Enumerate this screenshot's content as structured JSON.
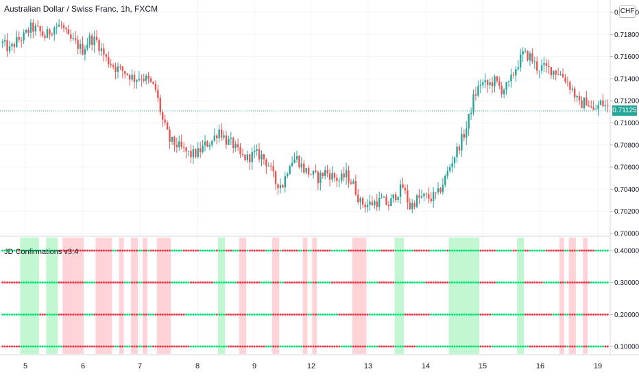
{
  "header": {
    "title": "Australian Dollar / Swiss Franc, 1h, FXCM",
    "currency_button": "CHF"
  },
  "indicator": {
    "title": "JD Confirmations v3.4"
  },
  "colors": {
    "up": "#26a69a",
    "down": "#ef5350",
    "dot_green": "#00e676",
    "dot_red": "#f23645",
    "band_green": "#b9f6ca",
    "band_red": "#ffcdd2",
    "last_price": "#26a69a"
  },
  "chart_data": [
    {
      "type": "candlestick",
      "title": "Australian Dollar / Swiss Franc, 1h, FXCM",
      "x_tick_labels": [
        "5",
        "6",
        "7",
        "8",
        "9",
        "12",
        "13",
        "14",
        "15",
        "16",
        "19"
      ],
      "y_tick_labels": [
        "0.72000",
        "0.71800",
        "0.71600",
        "0.71400",
        "0.71200",
        "0.71000",
        "0.70800",
        "0.70600",
        "0.70400",
        "0.70200",
        "0.70000"
      ],
      "ylim": [
        0.7,
        0.72
      ],
      "last_price": "0.71125",
      "price_path": [
        [
          0,
          0.7172
        ],
        [
          3,
          0.7166
        ],
        [
          6,
          0.7174
        ],
        [
          9,
          0.7178
        ],
        [
          12,
          0.7186
        ],
        [
          15,
          0.7184
        ],
        [
          18,
          0.7178
        ],
        [
          22,
          0.7187
        ],
        [
          25,
          0.7188
        ],
        [
          28,
          0.7176
        ],
        [
          31,
          0.7172
        ],
        [
          34,
          0.7166
        ],
        [
          37,
          0.7176
        ],
        [
          40,
          0.7174
        ],
        [
          44,
          0.7158
        ],
        [
          48,
          0.715
        ],
        [
          52,
          0.7146
        ],
        [
          56,
          0.714
        ],
        [
          59,
          0.7142
        ],
        [
          62,
          0.7138
        ],
        [
          65,
          0.713
        ],
        [
          68,
          0.7102
        ],
        [
          71,
          0.7084
        ],
        [
          74,
          0.708
        ],
        [
          77,
          0.7075
        ],
        [
          80,
          0.7071
        ],
        [
          83,
          0.7073
        ],
        [
          86,
          0.708
        ],
        [
          89,
          0.7084
        ],
        [
          92,
          0.7094
        ],
        [
          95,
          0.7084
        ],
        [
          98,
          0.708
        ],
        [
          101,
          0.707
        ],
        [
          104,
          0.7068
        ],
        [
          107,
          0.7072
        ],
        [
          110,
          0.707
        ],
        [
          113,
          0.7062
        ],
        [
          116,
          0.7046
        ],
        [
          119,
          0.7044
        ],
        [
          122,
          0.7065
        ],
        [
          125,
          0.7068
        ],
        [
          128,
          0.7058
        ],
        [
          131,
          0.7054
        ],
        [
          134,
          0.705
        ],
        [
          137,
          0.7056
        ],
        [
          140,
          0.7052
        ],
        [
          143,
          0.7048
        ],
        [
          146,
          0.7053
        ],
        [
          149,
          0.7044
        ],
        [
          152,
          0.7028
        ],
        [
          155,
          0.7026
        ],
        [
          158,
          0.7028
        ],
        [
          161,
          0.703
        ],
        [
          164,
          0.7026
        ],
        [
          167,
          0.7035
        ],
        [
          170,
          0.7042
        ],
        [
          173,
          0.7024
        ],
        [
          176,
          0.7031
        ],
        [
          179,
          0.7033
        ],
        [
          182,
          0.7032
        ],
        [
          185,
          0.7036
        ],
        [
          188,
          0.705
        ],
        [
          191,
          0.7066
        ],
        [
          194,
          0.708
        ],
        [
          197,
          0.7095
        ],
        [
          200,
          0.7122
        ],
        [
          203,
          0.7136
        ],
        [
          206,
          0.7134
        ],
        [
          209,
          0.7138
        ],
        [
          212,
          0.713
        ],
        [
          215,
          0.7134
        ],
        [
          218,
          0.715
        ],
        [
          221,
          0.7162
        ],
        [
          224,
          0.716
        ],
        [
          227,
          0.715
        ],
        [
          230,
          0.715
        ],
        [
          233,
          0.7148
        ],
        [
          236,
          0.7146
        ],
        [
          239,
          0.714
        ],
        [
          242,
          0.713
        ],
        [
          245,
          0.7116
        ],
        [
          248,
          0.712
        ],
        [
          251,
          0.711
        ],
        [
          254,
          0.7118
        ],
        [
          257,
          0.7114
        ]
      ]
    },
    {
      "type": "scatter",
      "title": "JD Confirmations v3.4",
      "y_tick_labels": [
        "0.40000",
        "0.30000",
        "0.20000",
        "0.10000"
      ],
      "rows": [
        0.4,
        0.3,
        0.2,
        0.1
      ],
      "ylim": [
        0.0,
        0.45
      ],
      "bars": 258,
      "green_bands": [
        [
          8,
          16
        ],
        [
          19,
          24
        ],
        [
          92,
          95
        ],
        [
          167,
          171
        ],
        [
          190,
          203
        ],
        [
          219,
          222
        ]
      ],
      "red_bands": [
        [
          26,
          35
        ],
        [
          40,
          47
        ],
        [
          50,
          52
        ],
        [
          55,
          58
        ],
        [
          60,
          62
        ],
        [
          66,
          72
        ],
        [
          101,
          104
        ],
        [
          115,
          118
        ],
        [
          128,
          130
        ],
        [
          132,
          134
        ],
        [
          149,
          155
        ],
        [
          237,
          239
        ],
        [
          241,
          244
        ],
        [
          247,
          249
        ]
      ]
    }
  ]
}
